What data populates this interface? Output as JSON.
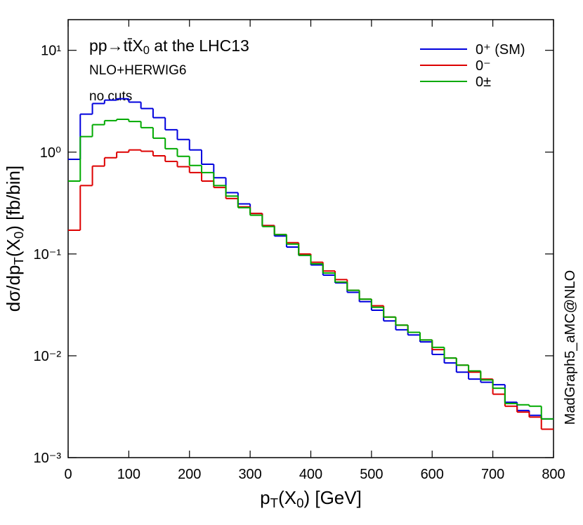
{
  "chart_data": {
    "type": "histogram",
    "title_parts": [
      "pp→tt̄X",
      "0",
      "   at the LHC13"
    ],
    "annotations": [
      "NLO+HERWIG6",
      "no cuts"
    ],
    "side_label": "MadGraph5_aMC@NLO",
    "xlabel_parts": [
      "p",
      "T",
      "(X",
      "0",
      ")   [GeV]"
    ],
    "ylabel_parts": [
      "dσ/dp",
      "T",
      "(X",
      "0",
      ")   [fb/bin]"
    ],
    "bins": [
      0,
      20,
      40,
      60,
      80,
      100,
      120,
      140,
      160,
      180,
      200,
      220,
      240,
      260,
      280,
      300,
      320,
      340,
      360,
      380,
      400,
      420,
      440,
      460,
      480,
      500,
      520,
      540,
      560,
      580,
      600,
      620,
      640,
      660,
      680,
      700,
      720,
      740,
      760,
      780,
      800
    ],
    "series": [
      {
        "name": "0⁺ (SM)",
        "color": "#0000dd",
        "values": [
          0.85,
          2.36,
          3.0,
          3.24,
          3.34,
          3.1,
          2.68,
          2.18,
          1.66,
          1.33,
          1.05,
          0.76,
          0.56,
          0.4,
          0.31,
          0.25,
          0.19,
          0.15,
          0.117,
          0.097,
          0.078,
          0.062,
          0.052,
          0.042,
          0.034,
          0.028,
          0.022,
          0.018,
          0.016,
          0.0137,
          0.0103,
          0.0085,
          0.0069,
          0.0059,
          0.0055,
          0.0052,
          0.0035,
          0.0029,
          0.0026,
          0.0024
        ]
      },
      {
        "name": "0⁻",
        "color": "#dd0000",
        "values": [
          0.171,
          0.47,
          0.73,
          0.88,
          1.0,
          1.05,
          1.02,
          0.92,
          0.81,
          0.72,
          0.63,
          0.52,
          0.45,
          0.35,
          0.29,
          0.25,
          0.19,
          0.155,
          0.129,
          0.1,
          0.083,
          0.068,
          0.056,
          0.044,
          0.036,
          0.031,
          0.024,
          0.02,
          0.017,
          0.0143,
          0.0115,
          0.0095,
          0.0081,
          0.0069,
          0.0059,
          0.0042,
          0.0032,
          0.0028,
          0.0025,
          0.0019
        ]
      },
      {
        "name": "0±",
        "color": "#00aa00",
        "values": [
          0.52,
          1.42,
          1.86,
          2.04,
          2.1,
          2.0,
          1.74,
          1.37,
          1.08,
          0.91,
          0.74,
          0.63,
          0.47,
          0.37,
          0.285,
          0.24,
          0.186,
          0.155,
          0.125,
          0.097,
          0.08,
          0.065,
          0.053,
          0.044,
          0.036,
          0.03,
          0.024,
          0.02,
          0.017,
          0.0143,
          0.0121,
          0.0095,
          0.0081,
          0.0071,
          0.0058,
          0.0048,
          0.0034,
          0.0033,
          0.0032,
          0.0024
        ]
      }
    ],
    "xlim": [
      0,
      800
    ],
    "xticks": [
      0,
      100,
      200,
      300,
      400,
      500,
      600,
      700,
      800
    ],
    "ylim": [
      0.001,
      20
    ],
    "yscale": "log",
    "yticks": [
      {
        "value": 0.001,
        "label": "10⁻³"
      },
      {
        "value": 0.01,
        "label": "10⁻²"
      },
      {
        "value": 0.1,
        "label": "10⁻¹"
      },
      {
        "value": 1,
        "label": "10⁰"
      },
      {
        "value": 10,
        "label": "10¹"
      }
    ],
    "legend": "upper right"
  }
}
